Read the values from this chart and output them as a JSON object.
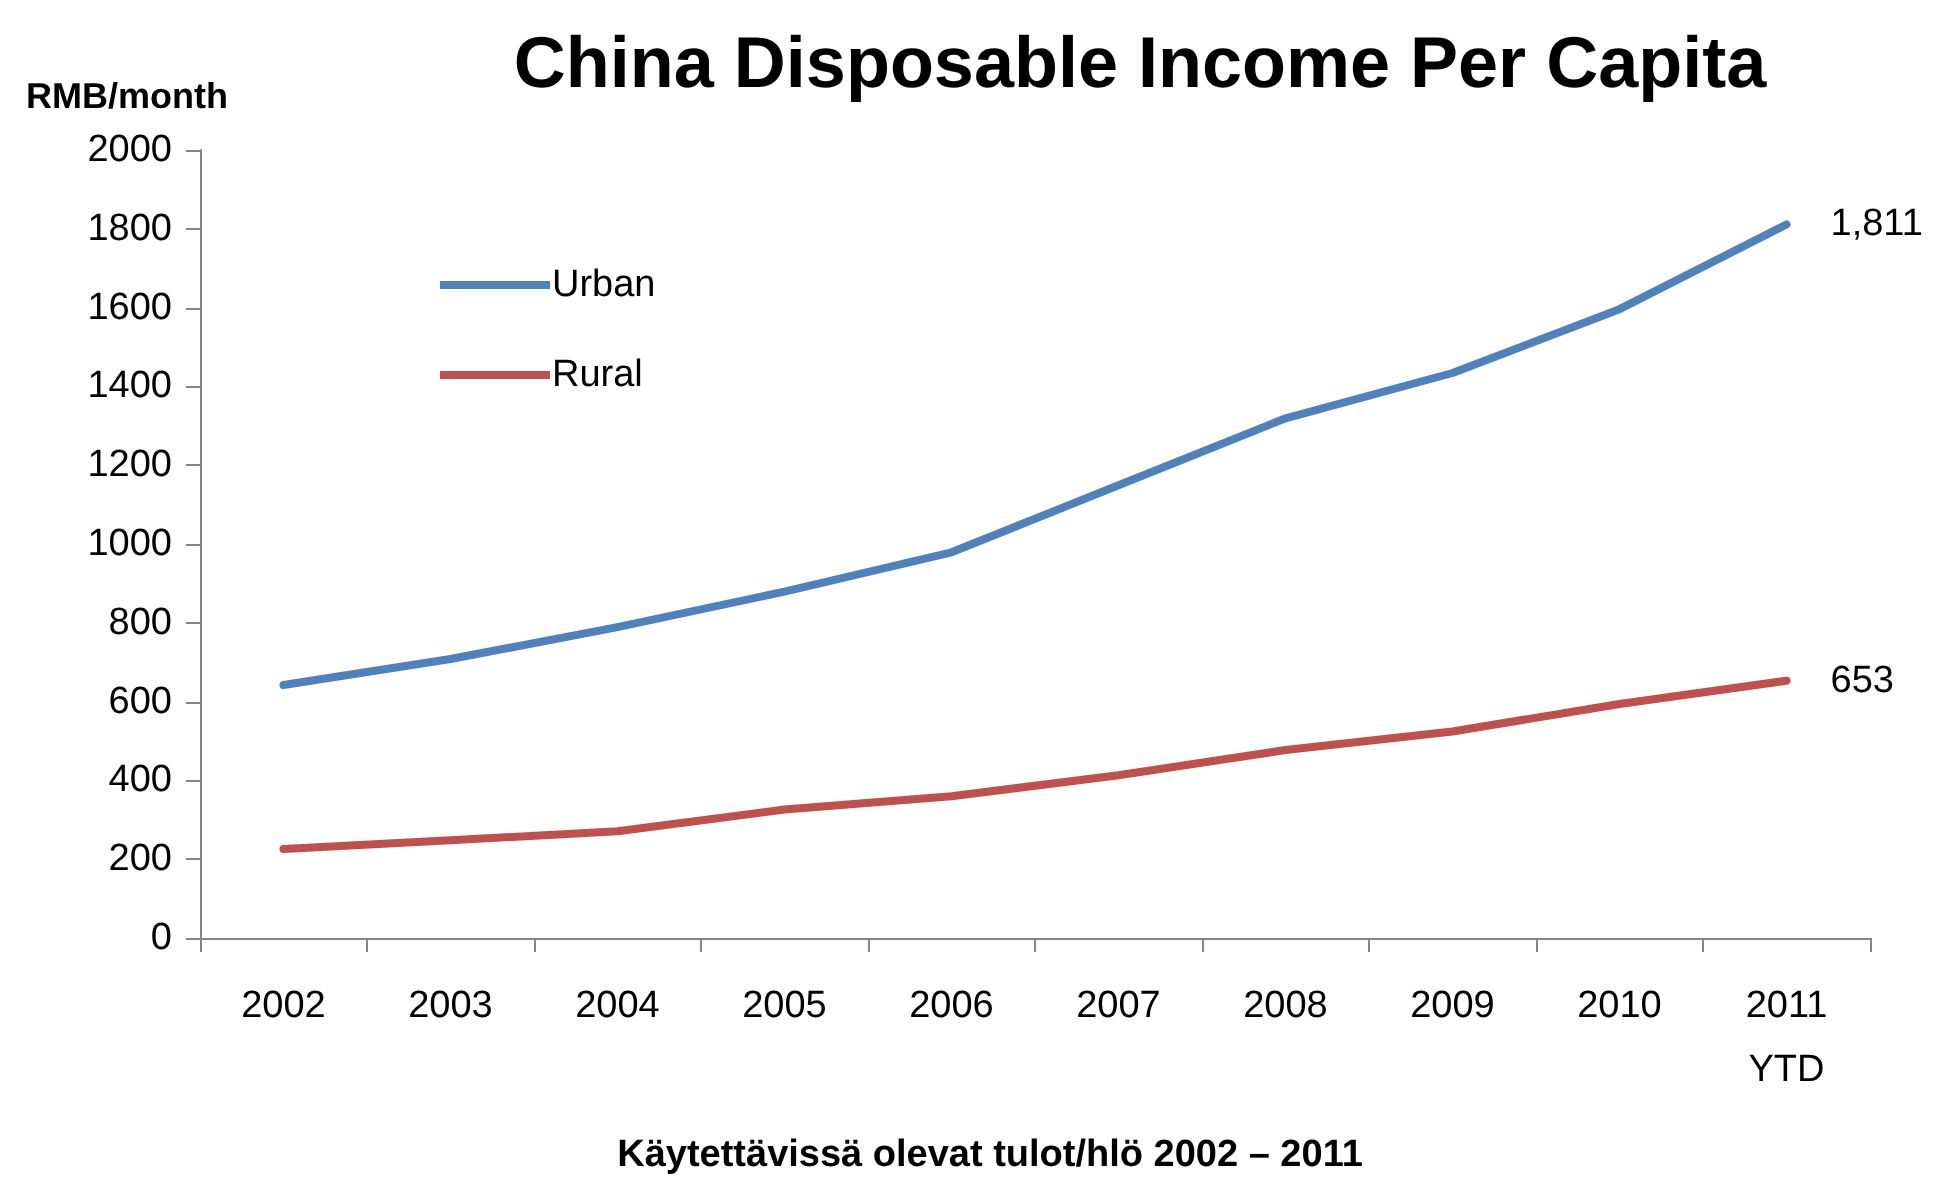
{
  "chart_data": {
    "type": "line",
    "title": "China Disposable Income Per Capita",
    "ylabel": "RMB/month",
    "xlabel": "Käytettävissä olevat tulot/hlö 2002 – 2011",
    "categories": [
      "2002",
      "2003",
      "2004",
      "2005",
      "2006",
      "2007",
      "2008",
      "2009",
      "2010",
      "2011\nYTD"
    ],
    "series": [
      {
        "name": "Urban",
        "color": "#4f81bd",
        "values": [
          642,
          708,
          789,
          879,
          979,
          1149,
          1319,
          1434,
          1596,
          1811
        ],
        "value_labels": [
          null,
          null,
          null,
          null,
          null,
          null,
          null,
          null,
          null,
          "1,811"
        ]
      },
      {
        "name": "Rural",
        "color": "#c0504d",
        "values": [
          226,
          248,
          271,
          326,
          360,
          413,
          477,
          524,
          594,
          653
        ],
        "value_labels": [
          null,
          null,
          null,
          null,
          null,
          null,
          null,
          null,
          null,
          "653"
        ]
      }
    ],
    "ylim": [
      0,
      2000
    ],
    "yticks": [
      0,
      200,
      400,
      600,
      800,
      1000,
      1200,
      1400,
      1600,
      1800,
      2000
    ],
    "grid": false,
    "legend": "top left",
    "marker": "none",
    "line_style": "solid"
  }
}
